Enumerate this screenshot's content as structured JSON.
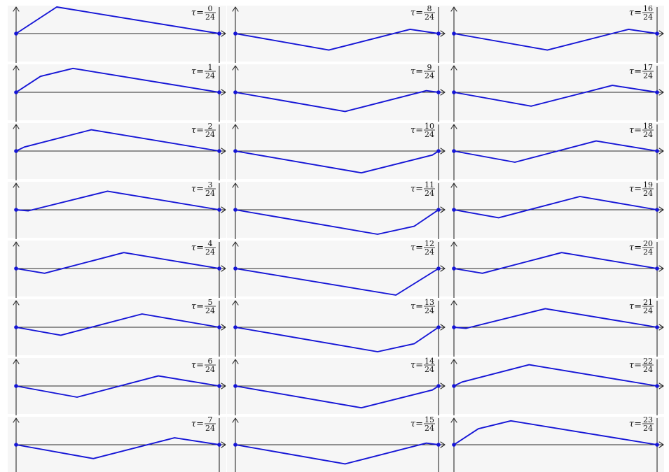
{
  "figure": {
    "panel_label_prefix": "τ=",
    "denominator": "24",
    "colors": {
      "curve": "#1515d6",
      "axis": "#2a2a2a",
      "panel_bg": "#f6f6f6"
    },
    "panels": [
      {
        "num": "0",
        "pts": [
          [
            0,
            0
          ],
          [
            0.2,
            1.0
          ],
          [
            1,
            0
          ]
        ]
      },
      {
        "num": "1",
        "pts": [
          [
            0,
            0
          ],
          [
            0.12,
            0.6
          ],
          [
            0.28,
            0.9
          ],
          [
            1,
            0
          ]
        ]
      },
      {
        "num": "2",
        "pts": [
          [
            0,
            0
          ],
          [
            0.04,
            0.15
          ],
          [
            0.37,
            0.8
          ],
          [
            1,
            0
          ]
        ]
      },
      {
        "num": "3",
        "pts": [
          [
            0,
            0
          ],
          [
            0.06,
            -0.04
          ],
          [
            0.45,
            0.7
          ],
          [
            1,
            0
          ]
        ]
      },
      {
        "num": "4",
        "pts": [
          [
            0,
            0
          ],
          [
            0.14,
            -0.18
          ],
          [
            0.53,
            0.6
          ],
          [
            1,
            0
          ]
        ]
      },
      {
        "num": "5",
        "pts": [
          [
            0,
            0
          ],
          [
            0.22,
            -0.3
          ],
          [
            0.62,
            0.5
          ],
          [
            1,
            0
          ]
        ]
      },
      {
        "num": "6",
        "pts": [
          [
            0,
            0
          ],
          [
            0.3,
            -0.42
          ],
          [
            0.7,
            0.38
          ],
          [
            1,
            0
          ]
        ]
      },
      {
        "num": "7",
        "pts": [
          [
            0,
            0
          ],
          [
            0.38,
            -0.52
          ],
          [
            0.78,
            0.26
          ],
          [
            1,
            0
          ]
        ]
      },
      {
        "num": "8",
        "pts": [
          [
            0,
            0
          ],
          [
            0.46,
            -0.62
          ],
          [
            0.86,
            0.16
          ],
          [
            1,
            0
          ]
        ]
      },
      {
        "num": "9",
        "pts": [
          [
            0,
            0
          ],
          [
            0.54,
            -0.72
          ],
          [
            0.94,
            0.06
          ],
          [
            1,
            0
          ]
        ]
      },
      {
        "num": "10",
        "pts": [
          [
            0,
            0
          ],
          [
            0.62,
            -0.82
          ],
          [
            0.97,
            -0.15
          ],
          [
            1,
            0
          ]
        ]
      },
      {
        "num": "11",
        "pts": [
          [
            0,
            0
          ],
          [
            0.7,
            -0.92
          ],
          [
            0.88,
            -0.62
          ],
          [
            1,
            0
          ]
        ]
      },
      {
        "num": "12",
        "pts": [
          [
            0,
            0
          ],
          [
            0.79,
            -1.0
          ],
          [
            1,
            0
          ]
        ]
      },
      {
        "num": "13",
        "pts": [
          [
            0,
            0
          ],
          [
            0.7,
            -0.92
          ],
          [
            0.88,
            -0.62
          ],
          [
            1,
            0
          ]
        ]
      },
      {
        "num": "14",
        "pts": [
          [
            0,
            0
          ],
          [
            0.62,
            -0.82
          ],
          [
            0.97,
            -0.15
          ],
          [
            1,
            0
          ]
        ]
      },
      {
        "num": "15",
        "pts": [
          [
            0,
            0
          ],
          [
            0.54,
            -0.72
          ],
          [
            0.94,
            0.06
          ],
          [
            1,
            0
          ]
        ]
      },
      {
        "num": "16",
        "pts": [
          [
            0,
            0
          ],
          [
            0.46,
            -0.62
          ],
          [
            0.86,
            0.16
          ],
          [
            1,
            0
          ]
        ]
      },
      {
        "num": "17",
        "pts": [
          [
            0,
            0
          ],
          [
            0.38,
            -0.52
          ],
          [
            0.78,
            0.26
          ],
          [
            1,
            0
          ]
        ]
      },
      {
        "num": "18",
        "pts": [
          [
            0,
            0
          ],
          [
            0.3,
            -0.42
          ],
          [
            0.7,
            0.38
          ],
          [
            1,
            0
          ]
        ]
      },
      {
        "num": "19",
        "pts": [
          [
            0,
            0
          ],
          [
            0.22,
            -0.3
          ],
          [
            0.62,
            0.5
          ],
          [
            1,
            0
          ]
        ]
      },
      {
        "num": "20",
        "pts": [
          [
            0,
            0
          ],
          [
            0.14,
            -0.18
          ],
          [
            0.53,
            0.6
          ],
          [
            1,
            0
          ]
        ]
      },
      {
        "num": "21",
        "pts": [
          [
            0,
            0
          ],
          [
            0.06,
            -0.04
          ],
          [
            0.45,
            0.7
          ],
          [
            1,
            0
          ]
        ]
      },
      {
        "num": "22",
        "pts": [
          [
            0,
            0
          ],
          [
            0.04,
            0.15
          ],
          [
            0.37,
            0.8
          ],
          [
            1,
            0
          ]
        ]
      },
      {
        "num": "23",
        "pts": [
          [
            0,
            0
          ],
          [
            0.12,
            0.6
          ],
          [
            0.28,
            0.9
          ],
          [
            1,
            0
          ]
        ]
      }
    ]
  }
}
